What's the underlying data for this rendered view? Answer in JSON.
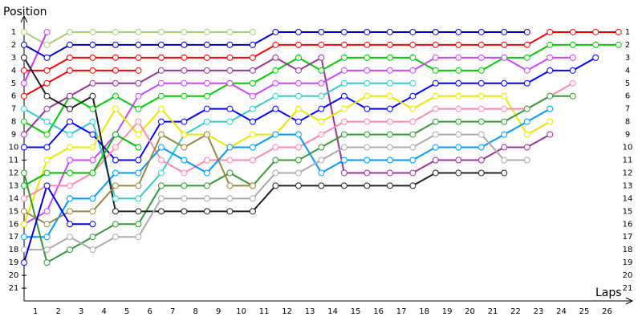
{
  "chart_data": {
    "type": "line",
    "y_axis_label": "Position",
    "x_axis_label": "Laps",
    "x": [
      0,
      1,
      2,
      3,
      4,
      5,
      6,
      7,
      8,
      9,
      10,
      11,
      12,
      13,
      14,
      15,
      16,
      17,
      18,
      19,
      20,
      21,
      22,
      23,
      24,
      25,
      26
    ],
    "xlim": [
      0,
      26.5
    ],
    "xticks": [
      {
        "value": 0.5,
        "label": "1"
      },
      {
        "value": 1.5,
        "label": "2"
      },
      {
        "value": 2.5,
        "label": "3"
      },
      {
        "value": 3.5,
        "label": "4"
      },
      {
        "value": 4.5,
        "label": "5"
      },
      {
        "value": 5.5,
        "label": "6"
      },
      {
        "value": 6.5,
        "label": "7"
      },
      {
        "value": 7.5,
        "label": "8"
      },
      {
        "value": 8.5,
        "label": "9"
      },
      {
        "value": 9.5,
        "label": "10"
      },
      {
        "value": 10.5,
        "label": "11"
      },
      {
        "value": 11.5,
        "label": "12"
      },
      {
        "value": 12.5,
        "label": "13"
      },
      {
        "value": 13.5,
        "label": "14"
      },
      {
        "value": 14.5,
        "label": "15"
      },
      {
        "value": 15.5,
        "label": "16"
      },
      {
        "value": 16.5,
        "label": "17"
      },
      {
        "value": 17.5,
        "label": "18"
      },
      {
        "value": 18.5,
        "label": "19"
      },
      {
        "value": 19.5,
        "label": "20"
      },
      {
        "value": 20.5,
        "label": "21"
      },
      {
        "value": 21.5,
        "label": "22"
      },
      {
        "value": 22.5,
        "label": "23"
      },
      {
        "value": 23.5,
        "label": "24"
      },
      {
        "value": 24.5,
        "label": "25"
      },
      {
        "value": 25.5,
        "label": "26"
      }
    ],
    "ylim": [
      0,
      22
    ],
    "y_reversed": true,
    "yticks": [
      1,
      2,
      3,
      4,
      5,
      6,
      7,
      8,
      9,
      10,
      11,
      12,
      13,
      14,
      15,
      16,
      17,
      18,
      19,
      20,
      21
    ],
    "series": [
      {
        "color": "#a8d070",
        "values": [
          1,
          2,
          1,
          1,
          1,
          1,
          1,
          1,
          1,
          1,
          1,
          null,
          null,
          null,
          null,
          null,
          null,
          null,
          null,
          null,
          null,
          null,
          null,
          null,
          null,
          null,
          null
        ]
      },
      {
        "color": "#cc33ff",
        "values": [
          5,
          1,
          null,
          null,
          null,
          null,
          null,
          null,
          null,
          null,
          null,
          null,
          null,
          null,
          null,
          null,
          null,
          null,
          null,
          null,
          null,
          null,
          null,
          null,
          null,
          null,
          null
        ]
      },
      {
        "color": "#0000cc",
        "values": [
          2,
          3,
          2,
          2,
          2,
          2,
          2,
          2,
          2,
          2,
          2,
          1,
          1,
          1,
          1,
          1,
          1,
          1,
          1,
          1,
          1,
          1,
          1,
          null,
          null,
          null,
          null
        ]
      },
      {
        "color": "#ff0000",
        "values": [
          4,
          4,
          3,
          3,
          3,
          3,
          3,
          3,
          3,
          3,
          3,
          2,
          2,
          2,
          2,
          2,
          2,
          2,
          2,
          2,
          2,
          2,
          2,
          1,
          1,
          1,
          1
        ]
      },
      {
        "color": "#00cc00",
        "values": [
          8,
          9,
          6,
          7,
          6,
          7,
          6,
          6,
          6,
          5,
          5,
          4,
          3,
          4,
          3,
          3,
          3,
          3,
          4,
          4,
          4,
          3,
          3,
          2,
          2,
          2,
          2
        ]
      },
      {
        "color": "#ff0000",
        "values": [
          6,
          5,
          4,
          4,
          4,
          4,
          null,
          null,
          null,
          null,
          null,
          null,
          null,
          null,
          null,
          null,
          null,
          null,
          null,
          null,
          null,
          null,
          null,
          null,
          null,
          null,
          null
        ]
      },
      {
        "color": "#993399",
        "values": [
          9,
          7,
          6,
          5,
          5,
          5,
          4,
          4,
          4,
          4,
          4,
          3,
          4,
          3,
          12,
          12,
          12,
          12,
          11,
          11,
          11,
          10,
          10,
          9,
          null,
          null,
          null
        ]
      },
      {
        "color": "#cc44ff",
        "values": [
          16,
          15,
          11,
          11,
          9,
          6,
          5,
          5,
          5,
          5,
          6,
          5,
          5,
          5,
          4,
          4,
          4,
          4,
          3,
          3,
          3,
          3,
          4,
          3,
          3,
          null,
          null
        ]
      },
      {
        "color": "#33cccc",
        "values": [
          7,
          8,
          9,
          8,
          14,
          14,
          12,
          9,
          8,
          8,
          7,
          6,
          6,
          6,
          5,
          5,
          5,
          5,
          null,
          null,
          null,
          null,
          null,
          null,
          null,
          null,
          null
        ]
      },
      {
        "color": "#0000ff",
        "values": [
          10,
          10,
          8,
          9,
          11,
          11,
          8,
          8,
          7,
          7,
          8,
          7,
          8,
          7,
          6,
          7,
          7,
          6,
          5,
          5,
          5,
          5,
          5,
          4,
          4,
          3,
          null
        ]
      },
      {
        "color": "#e8e800",
        "values": [
          16,
          11,
          10,
          10,
          7,
          9,
          7,
          9,
          9,
          10,
          9,
          9,
          7,
          8,
          7,
          6,
          6,
          7,
          6,
          6,
          6,
          6,
          9,
          8,
          null,
          null,
          null
        ]
      },
      {
        "color": "#ff88aa",
        "values": [
          14,
          13,
          13,
          12,
          10,
          8,
          11,
          12,
          11,
          11,
          11,
          10,
          10,
          9,
          8,
          8,
          8,
          8,
          7,
          7,
          7,
          7,
          7,
          6,
          5,
          null,
          null
        ]
      },
      {
        "color": "#0099ff",
        "values": [
          17,
          17,
          14,
          14,
          12,
          12,
          10,
          11,
          12,
          10,
          10,
          9,
          9,
          12,
          11,
          11,
          11,
          11,
          10,
          10,
          10,
          9,
          8,
          7,
          null,
          null,
          null
        ]
      },
      {
        "color": "#339933",
        "values": [
          12,
          19,
          18,
          17,
          16,
          16,
          13,
          13,
          13,
          12,
          13,
          11,
          11,
          10,
          9,
          9,
          9,
          9,
          8,
          8,
          8,
          8,
          7,
          6,
          6,
          null,
          null
        ]
      },
      {
        "color": "#222222",
        "values": [
          3,
          6,
          7,
          6,
          15,
          15,
          15,
          15,
          15,
          15,
          15,
          13,
          13,
          13,
          13,
          13,
          13,
          13,
          12,
          12,
          12,
          12,
          null,
          null,
          null,
          null,
          null
        ]
      },
      {
        "color": "#998844",
        "values": [
          15,
          16,
          15,
          15,
          13,
          13,
          9,
          10,
          9,
          13,
          13,
          null,
          null,
          null,
          null,
          null,
          null,
          null,
          null,
          null,
          null,
          null,
          null,
          null,
          null,
          null,
          null
        ]
      },
      {
        "color": "#aaaaaa",
        "values": [
          18,
          18,
          17,
          18,
          17,
          17,
          14,
          14,
          14,
          14,
          14,
          12,
          12,
          11,
          10,
          10,
          10,
          10,
          9,
          9,
          9,
          11,
          11,
          null,
          null,
          null,
          null
        ]
      },
      {
        "color": "#00bb00",
        "values": [
          13,
          12,
          12,
          12,
          9,
          10,
          null,
          null,
          null,
          null,
          null,
          null,
          null,
          null,
          null,
          null,
          null,
          null,
          null,
          null,
          null,
          null,
          null,
          null,
          null,
          null,
          null
        ]
      },
      {
        "color": "#0000dd",
        "values": [
          19,
          13,
          16,
          16,
          null,
          null,
          null,
          null,
          null,
          null,
          null,
          null,
          null,
          null,
          null,
          null,
          null,
          null,
          null,
          null,
          null,
          null,
          null,
          null,
          null,
          null,
          null
        ]
      }
    ]
  }
}
